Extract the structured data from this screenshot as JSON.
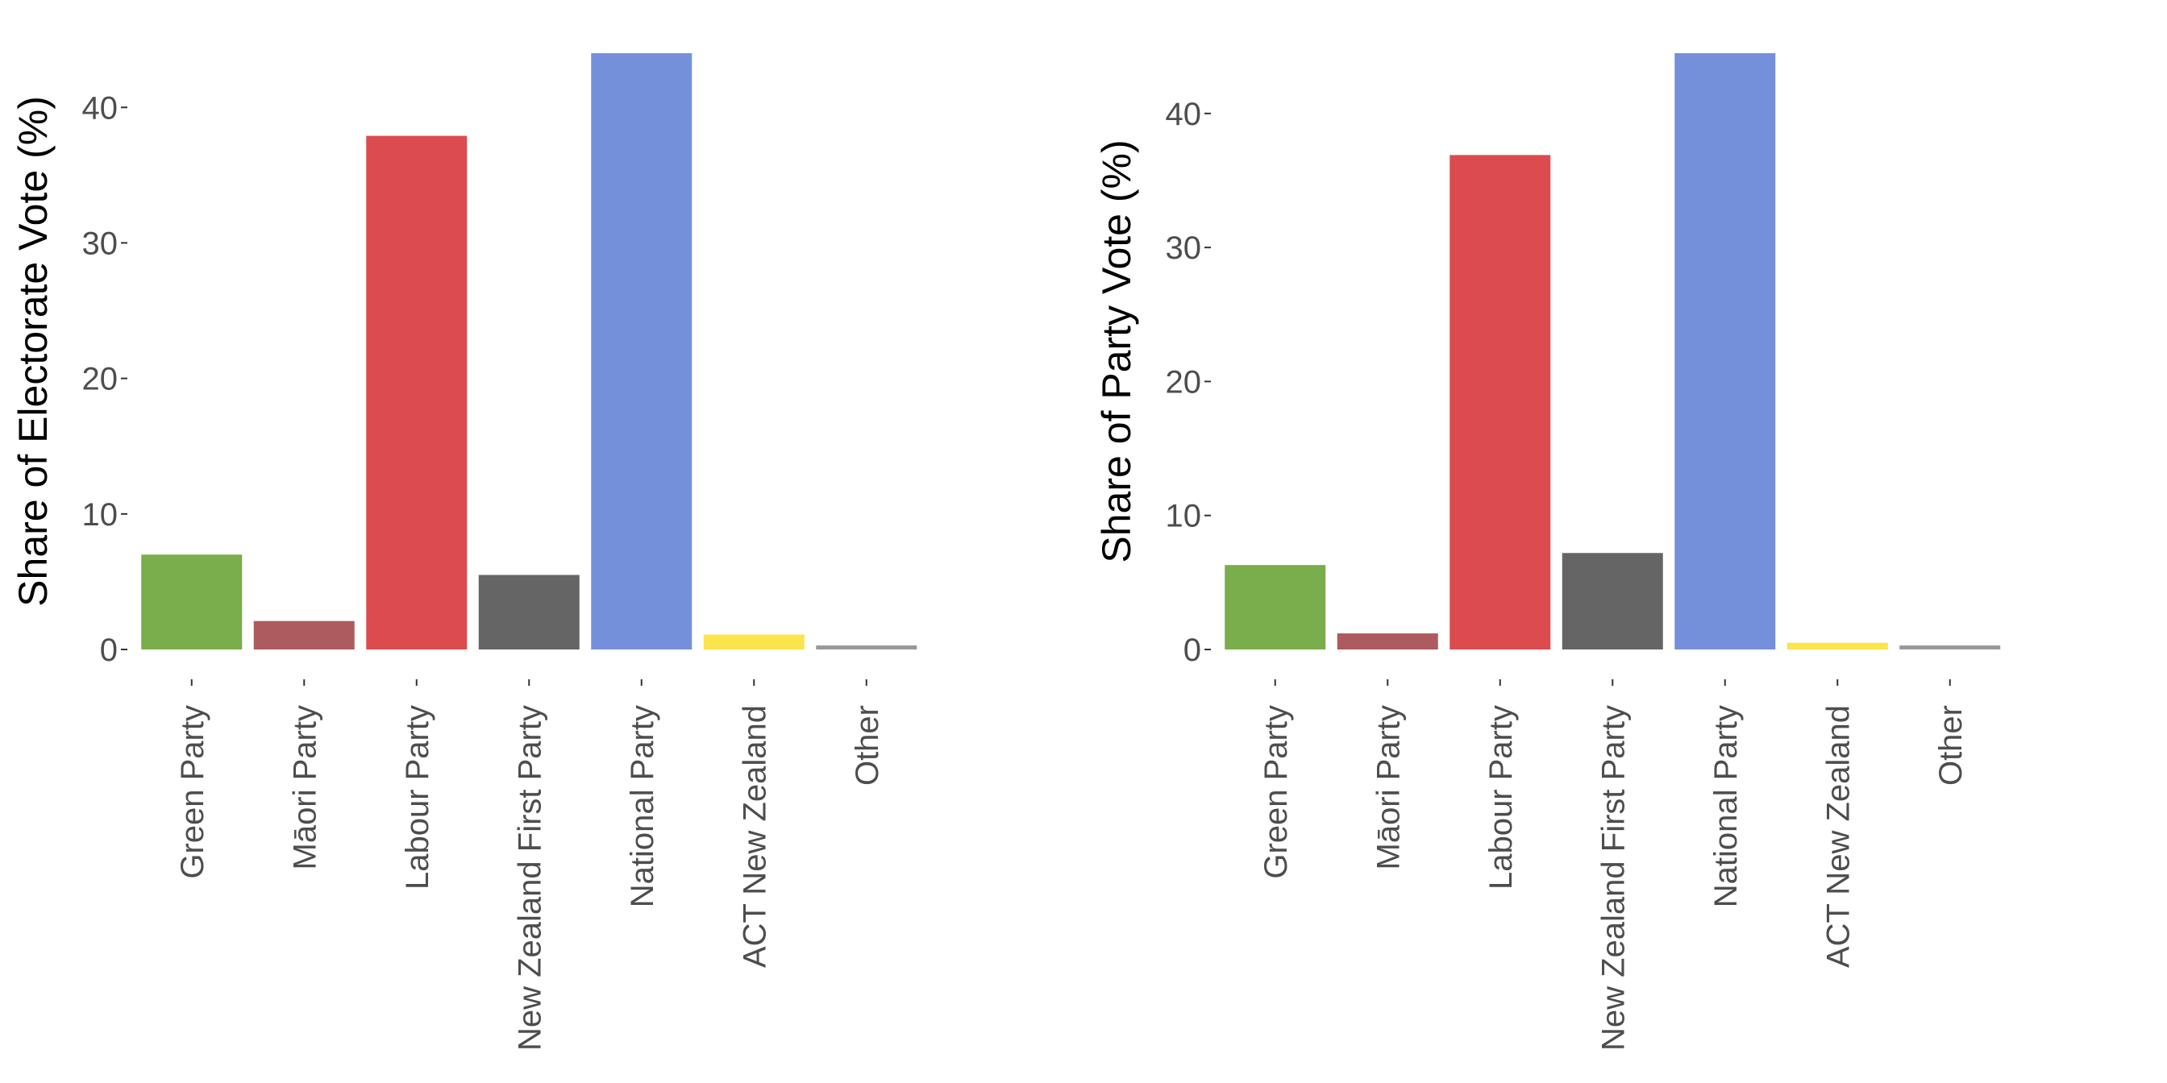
{
  "chart_data": [
    {
      "type": "bar",
      "xlabel": "",
      "ylabel": "Share of Electorate Vote (%)",
      "categories": [
        "Green Party",
        "Māori Party",
        "Labour Party",
        "New Zealand First Party",
        "National Party",
        "ACT New Zealand",
        "Other"
      ],
      "values": [
        7.0,
        2.1,
        37.9,
        5.5,
        44.0,
        1.1,
        0.3
      ],
      "colors": [
        "#7aad4b",
        "#ad5b5e",
        "#dc4c4e",
        "#656565",
        "#7590db",
        "#fde34c",
        "#999999"
      ],
      "ylim": [
        0,
        44
      ],
      "yticks": [
        0,
        10,
        20,
        30,
        40
      ],
      "grid": false,
      "legend": "none"
    },
    {
      "type": "bar",
      "xlabel": "",
      "ylabel": "Share of Party Vote (%)",
      "categories": [
        "Green Party",
        "Māori Party",
        "Labour Party",
        "New Zealand First Party",
        "National Party",
        "ACT New Zealand",
        "Other"
      ],
      "values": [
        6.3,
        1.2,
        36.9,
        7.2,
        44.5,
        0.5,
        0.3
      ],
      "colors": [
        "#7aad4b",
        "#ad5b5e",
        "#dc4c4e",
        "#656565",
        "#7590db",
        "#fde34c",
        "#999999"
      ],
      "ylim": [
        0,
        44.5
      ],
      "yticks": [
        0,
        10,
        20,
        30,
        40
      ],
      "grid": false,
      "legend": "none"
    }
  ]
}
